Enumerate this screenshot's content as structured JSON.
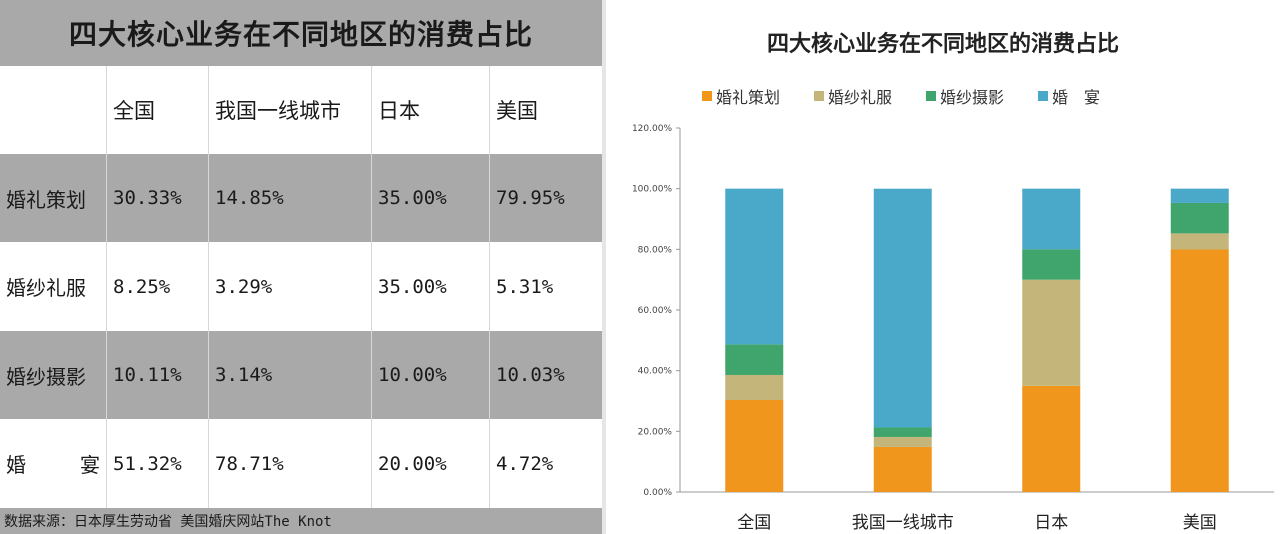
{
  "table": {
    "title": "四大核心业务在不同地区的消费占比",
    "header": [
      "",
      "全国",
      "我国一线城市",
      "日本",
      "美国"
    ],
    "rows": [
      {
        "label": "婚礼策划",
        "values": [
          "30.33%",
          "14.85%",
          "35.00%",
          "79.95%"
        ]
      },
      {
        "label": "婚纱礼服",
        "values": [
          "8.25%",
          "3.29%",
          "35.00%",
          "5.31%"
        ]
      },
      {
        "label": "婚纱摄影",
        "values": [
          "10.11%",
          "3.14%",
          "10.00%",
          "10.03%"
        ]
      },
      {
        "label_left": "婚",
        "label_right": "宴",
        "values": [
          "51.32%",
          "78.71%",
          "20.00%",
          "4.72%"
        ]
      }
    ],
    "source": "数据来源：日本厚生劳动省 美国婚庆网站The Knot"
  },
  "chart_data": {
    "type": "bar",
    "stacked": true,
    "title": "四大核心业务在不同地区的消费占比",
    "categories": [
      "全国",
      "我国一线城市",
      "日本",
      "美国"
    ],
    "series": [
      {
        "name": "婚礼策划",
        "color": "#f0961c",
        "values": [
          30.33,
          14.85,
          35.0,
          79.95
        ]
      },
      {
        "name": "婚纱礼服",
        "color": "#c4b67a",
        "values": [
          8.25,
          3.29,
          35.0,
          5.31
        ]
      },
      {
        "name": "婚纱摄影",
        "color": "#3fa56c",
        "values": [
          10.11,
          3.14,
          10.0,
          10.03
        ]
      },
      {
        "name": "婚　宴",
        "color": "#4aa8c8",
        "values": [
          51.32,
          78.71,
          20.0,
          4.72
        ]
      }
    ],
    "yticks": [
      "0.00%",
      "20.00%",
      "40.00%",
      "60.00%",
      "80.00%",
      "100.00%",
      "120.00%"
    ],
    "ylim": [
      0,
      120
    ],
    "grid": false,
    "legend_position": "top"
  }
}
